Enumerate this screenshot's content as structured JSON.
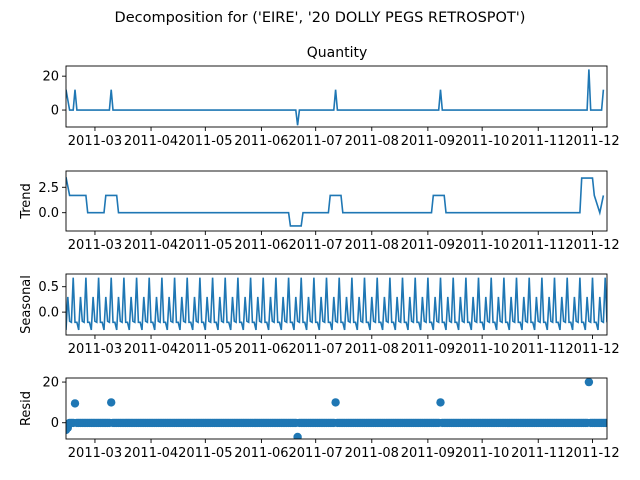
{
  "suptitle": "Decomposition for ('EIRE', '20 DOLLY PEGS RETROSPOT')",
  "color": "#1f77b4",
  "x_ticks": [
    "2011-03",
    "2011-04",
    "2011-05",
    "2011-06",
    "2011-07",
    "2011-08",
    "2011-09",
    "2011-10",
    "2011-11",
    "2011-12"
  ],
  "chart_data": [
    {
      "type": "line",
      "title": "Quantity",
      "ylabel": "",
      "ylim": [
        -10,
        26
      ],
      "yticks": [
        "0",
        "20"
      ],
      "x": [
        "2011-02-13",
        "2011-02-15",
        "2011-02-17",
        "2011-02-18",
        "2011-02-19",
        "2011-02-20",
        "2011-03-09",
        "2011-03-10",
        "2011-03-11",
        "2011-06-20",
        "2011-06-21",
        "2011-06-22",
        "2011-07-11",
        "2011-07-12",
        "2011-07-13",
        "2011-09-07",
        "2011-09-08",
        "2011-09-09",
        "2011-11-28",
        "2011-11-29",
        "2011-11-30",
        "2011-12-06",
        "2011-12-07"
      ],
      "values": [
        12,
        0,
        0,
        12,
        0,
        0,
        0,
        12,
        0,
        0,
        -9,
        0,
        0,
        12,
        0,
        0,
        12,
        0,
        0,
        24,
        0,
        0,
        12
      ]
    },
    {
      "type": "line",
      "title": "",
      "ylabel": "Trend",
      "ylim": [
        -1.8,
        4.1
      ],
      "yticks": [
        "0.0",
        "2.5"
      ],
      "x": [
        "2011-02-13",
        "2011-02-15",
        "2011-02-24",
        "2011-02-25",
        "2011-03-06",
        "2011-03-07",
        "2011-03-13",
        "2011-03-14",
        "2011-06-16",
        "2011-06-17",
        "2011-06-23",
        "2011-06-24",
        "2011-07-08",
        "2011-07-09",
        "2011-07-15",
        "2011-07-16",
        "2011-09-03",
        "2011-09-04",
        "2011-09-10",
        "2011-09-11",
        "2011-11-24",
        "2011-11-25",
        "2011-12-01",
        "2011-12-02",
        "2011-12-05",
        "2011-12-07"
      ],
      "values": [
        3.5,
        1.7,
        1.7,
        0,
        0,
        1.7,
        1.7,
        0,
        0,
        -1.3,
        -1.3,
        0,
        0,
        1.7,
        1.7,
        0,
        0,
        1.7,
        1.7,
        0,
        0,
        3.4,
        3.4,
        1.7,
        0,
        1.7
      ]
    },
    {
      "type": "line",
      "title": "",
      "ylabel": "Seasonal",
      "period": 7,
      "weekly_pattern": [
        -0.35,
        0.3,
        -0.18,
        -0.2,
        0.68,
        -0.2,
        -0.2
      ],
      "ylim": [
        -0.45,
        0.75
      ],
      "yticks": [
        "0.0",
        "0.5"
      ],
      "x_range": [
        "2011-02-13",
        "2011-12-09"
      ]
    },
    {
      "type": "scatter",
      "title": "",
      "ylabel": "Resid",
      "ylim": [
        -8,
        22
      ],
      "yticks": [
        "0",
        "20"
      ],
      "x_range": [
        "2011-02-13",
        "2011-12-09"
      ],
      "baseline_value": -0.1,
      "outliers_x": [
        "2011-02-13",
        "2011-02-14",
        "2011-02-18",
        "2011-03-10",
        "2011-06-21",
        "2011-07-12",
        "2011-09-08",
        "2011-11-29"
      ],
      "outliers_y": [
        -3.5,
        -2.5,
        9.5,
        10,
        -7,
        10,
        10,
        20
      ]
    }
  ]
}
